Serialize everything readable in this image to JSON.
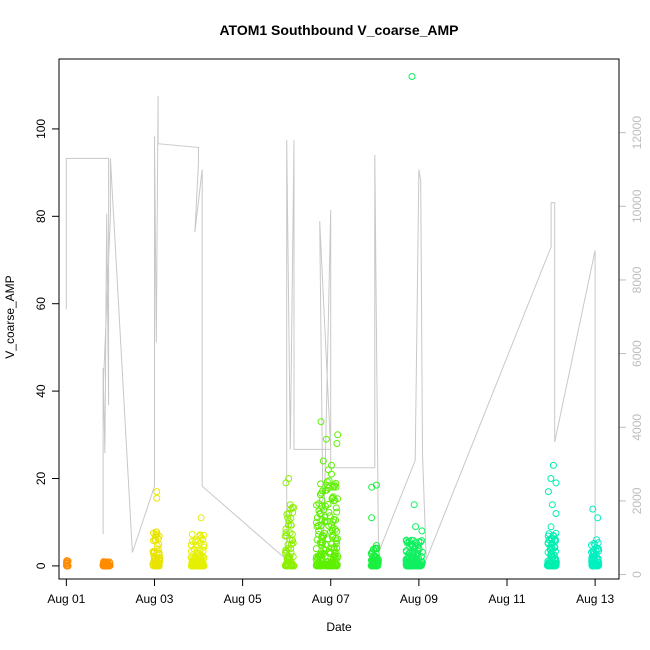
{
  "chart_data": {
    "type": "scatter",
    "title": "ATOM1 Southbound V_coarse_AMP",
    "xlabel": "Date",
    "ylabel": "V_coarse_AMP",
    "xlim": [
      "2017-07-31T20:00",
      "2017-08-13T13:00"
    ],
    "ylim": [
      -3,
      116
    ],
    "y2lim": [
      -120,
      14000
    ],
    "xticks": [
      {
        "label": "Aug 01",
        "date": "2017-08-01"
      },
      {
        "label": "Aug 03",
        "date": "2017-08-03"
      },
      {
        "label": "Aug 05",
        "date": "2017-08-05"
      },
      {
        "label": "Aug 07",
        "date": "2017-08-07"
      },
      {
        "label": "Aug 09",
        "date": "2017-08-09"
      },
      {
        "label": "Aug 11",
        "date": "2017-08-11"
      },
      {
        "label": "Aug 13",
        "date": "2017-08-13"
      }
    ],
    "yticks": [
      0,
      20,
      40,
      60,
      80,
      100
    ],
    "y2ticks": [
      0,
      2000,
      4000,
      6000,
      8000,
      10000,
      12000
    ],
    "grid": false,
    "series": [
      {
        "axis": "left",
        "marker": "open-circle",
        "color_gradient": "orange-yellow-green-cyan by time",
        "clusters": [
          {
            "start": "2017-08-01T00:00",
            "end": "2017-08-01T01:00",
            "color": "#ff8c00",
            "max": 1.2,
            "outliers": [
              1.2,
              0.6
            ]
          },
          {
            "start": "2017-08-01T20:00",
            "end": "2017-08-02T00:00",
            "color": "#ff8c00",
            "max": 1.0,
            "outliers": [
              0.9,
              0.7
            ]
          },
          {
            "start": "2017-08-02T23:00",
            "end": "2017-08-03T03:00",
            "color": "#e8e400",
            "max": 8,
            "outliers": [
              17,
              15.5,
              7.5,
              6,
              5
            ]
          },
          {
            "start": "2017-08-03T20:00",
            "end": "2017-08-04T03:00",
            "color": "#e4f000",
            "max": 8,
            "outliers": [
              11,
              7,
              6
            ]
          },
          {
            "start": "2017-08-05T23:00",
            "end": "2017-08-06T04:00",
            "color": "#8cf000",
            "max": 14,
            "outliers": [
              20,
              19,
              14,
              13,
              12
            ]
          },
          {
            "start": "2017-08-06T16:00",
            "end": "2017-08-07T04:00",
            "color": "#5ef000",
            "max": 20,
            "outliers": [
              33,
              30,
              29,
              28,
              24,
              23,
              22,
              21,
              18
            ]
          },
          {
            "start": "2017-08-07T22:00",
            "end": "2017-08-08T02:00",
            "color": "#1af040",
            "max": 5,
            "outliers": [
              18.5,
              18,
              11
            ]
          },
          {
            "start": "2017-08-08T17:00",
            "end": "2017-08-09T02:00",
            "color": "#10f060",
            "max": 6,
            "outliers": [
              112,
              14,
              9,
              8
            ]
          },
          {
            "start": "2017-08-11T22:00",
            "end": "2017-08-12T03:00",
            "color": "#00f0b0",
            "max": 9,
            "outliers": [
              23,
              20,
              19,
              17,
              14,
              12
            ]
          },
          {
            "start": "2017-08-12T22:00",
            "end": "2017-08-13T02:00",
            "color": "#00f0c0",
            "max": 6,
            "outliers": [
              13,
              11,
              6
            ]
          }
        ]
      },
      {
        "axis": "right",
        "type": "line",
        "color": "#c8c8c8",
        "points": [
          [
            "2017-08-01T00:00",
            7200
          ],
          [
            "2017-08-01T00:00",
            11300
          ],
          [
            "2017-08-01T23:00",
            11300
          ],
          [
            "2017-08-01T23:00",
            4600
          ],
          [
            "2017-08-01T22:00",
            9800
          ],
          [
            "2017-08-01T21:00",
            3300
          ],
          [
            "2017-08-01T20:00",
            5600
          ],
          [
            "2017-08-01T20:00",
            1100
          ],
          [
            "2017-08-01T20:00",
            5000
          ],
          [
            "2017-08-02T00:00",
            9700
          ],
          [
            "2017-08-02T00:00",
            11300
          ],
          [
            "2017-08-02T12:00",
            600
          ],
          [
            "2017-08-03T00:00",
            2400
          ],
          [
            "2017-08-03T00:00",
            11900
          ],
          [
            "2017-08-03T01:00",
            6300
          ],
          [
            "2017-08-03T02:00",
            13000
          ],
          [
            "2017-08-03T02:00",
            11700
          ],
          [
            "2017-08-04T00:00",
            11600
          ],
          [
            "2017-08-04T00:00",
            11200
          ],
          [
            "2017-08-03T22:00",
            9300
          ],
          [
            "2017-08-04T02:00",
            11000
          ],
          [
            "2017-08-04T02:00",
            2400
          ],
          [
            "2017-08-06T00:00",
            400
          ],
          [
            "2017-08-06T00:00",
            11800
          ],
          [
            "2017-08-06T02:00",
            3400
          ],
          [
            "2017-08-06T04:00",
            11800
          ],
          [
            "2017-08-06T04:00",
            3400
          ],
          [
            "2017-08-07T00:00",
            3400
          ],
          [
            "2017-08-06T18:00",
            9600
          ],
          [
            "2017-08-06T20:00",
            600
          ],
          [
            "2017-08-07T00:00",
            9900
          ],
          [
            "2017-08-07T00:00",
            2900
          ],
          [
            "2017-08-08T00:00",
            2900
          ],
          [
            "2017-08-08T00:00",
            11400
          ],
          [
            "2017-08-08T02:00",
            600
          ],
          [
            "2017-08-08T22:00",
            3100
          ],
          [
            "2017-08-09T00:00",
            11000
          ],
          [
            "2017-08-09T01:00",
            10700
          ],
          [
            "2017-08-09T02:00",
            3300
          ],
          [
            "2017-08-09T04:00",
            400
          ],
          [
            "2017-08-12T00:00",
            8900
          ],
          [
            "2017-08-12T00:00",
            10100
          ],
          [
            "2017-08-12T02:00",
            10100
          ],
          [
            "2017-08-12T02:00",
            3600
          ],
          [
            "2017-08-13T00:00",
            8800
          ],
          [
            "2017-08-13T00:00",
            700
          ]
        ]
      }
    ]
  }
}
